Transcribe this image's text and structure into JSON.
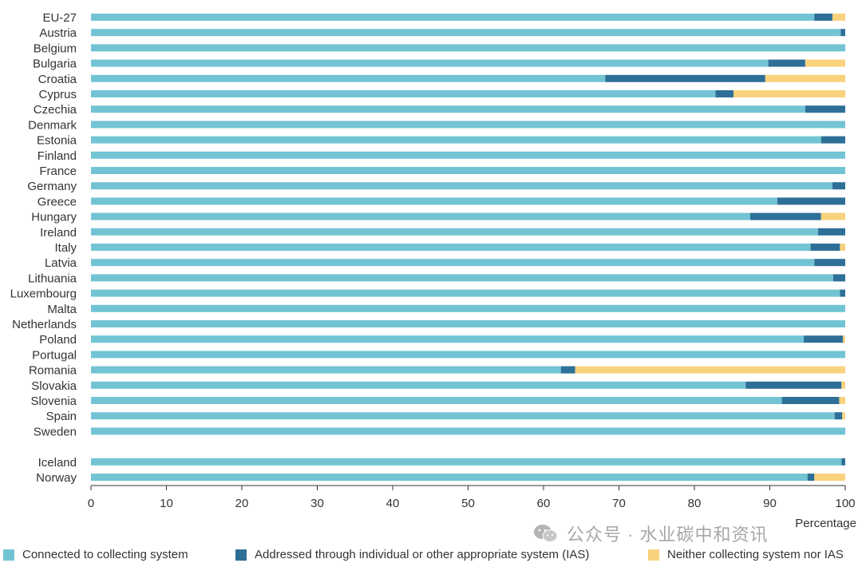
{
  "chart_data": {
    "type": "bar",
    "orientation": "horizontal",
    "stacked": true,
    "xlabel": "Percentage",
    "xlim": [
      0,
      100
    ],
    "xticks": [
      0,
      10,
      20,
      30,
      40,
      50,
      60,
      70,
      80,
      90,
      100
    ],
    "grid": false,
    "legend_position": "bottom",
    "categories": [
      "EU-27",
      "Austria",
      "Belgium",
      "Bulgaria",
      "Croatia",
      "Cyprus",
      "Czechia",
      "Denmark",
      "Estonia",
      "Finland",
      "France",
      "Germany",
      "Greece",
      "Hungary",
      "Ireland",
      "Italy",
      "Latvia",
      "Lithuania",
      "Luxembourg",
      "Malta",
      "Netherlands",
      "Poland",
      "Portugal",
      "Romania",
      "Slovakia",
      "Slovenia",
      "Spain",
      "Sweden",
      "Iceland",
      "Norway"
    ],
    "series": [
      {
        "name": "Connected to collecting system",
        "color": "#72c4d4",
        "values": [
          95.9,
          99.4,
          100,
          89.8,
          68.2,
          82.8,
          94.7,
          100,
          96.8,
          100,
          100,
          98.3,
          91.0,
          87.4,
          96.4,
          95.4,
          95.9,
          98.4,
          99.3,
          100,
          100,
          94.5,
          100,
          62.3,
          86.8,
          91.6,
          98.6,
          100,
          99.5,
          95.0
        ]
      },
      {
        "name": "Addressed through individual or other appropriate system (IAS)",
        "color": "#2e6f97",
        "values": [
          2.4,
          0.6,
          0,
          4.9,
          21.2,
          2.4,
          5.3,
          0,
          3.2,
          0,
          0,
          1.7,
          9.0,
          9.4,
          3.6,
          3.9,
          4.1,
          1.6,
          0.7,
          0,
          0,
          5.2,
          0,
          1.9,
          12.7,
          7.6,
          1.0,
          0,
          0.5,
          0.9
        ]
      },
      {
        "name": "Neither collecting system nor IAS",
        "color": "#f9d27d",
        "values": [
          1.7,
          0,
          0,
          5.3,
          10.6,
          14.8,
          0,
          0,
          0,
          0,
          0,
          0,
          0,
          3.2,
          0,
          0.7,
          0,
          0,
          0,
          0,
          0,
          0.3,
          0,
          35.8,
          0.5,
          0.8,
          0.4,
          0,
          0,
          4.1
        ]
      }
    ]
  },
  "watermark": {
    "text": "公众号 · 水业碳中和资讯",
    "icon": "wechat-icon"
  }
}
